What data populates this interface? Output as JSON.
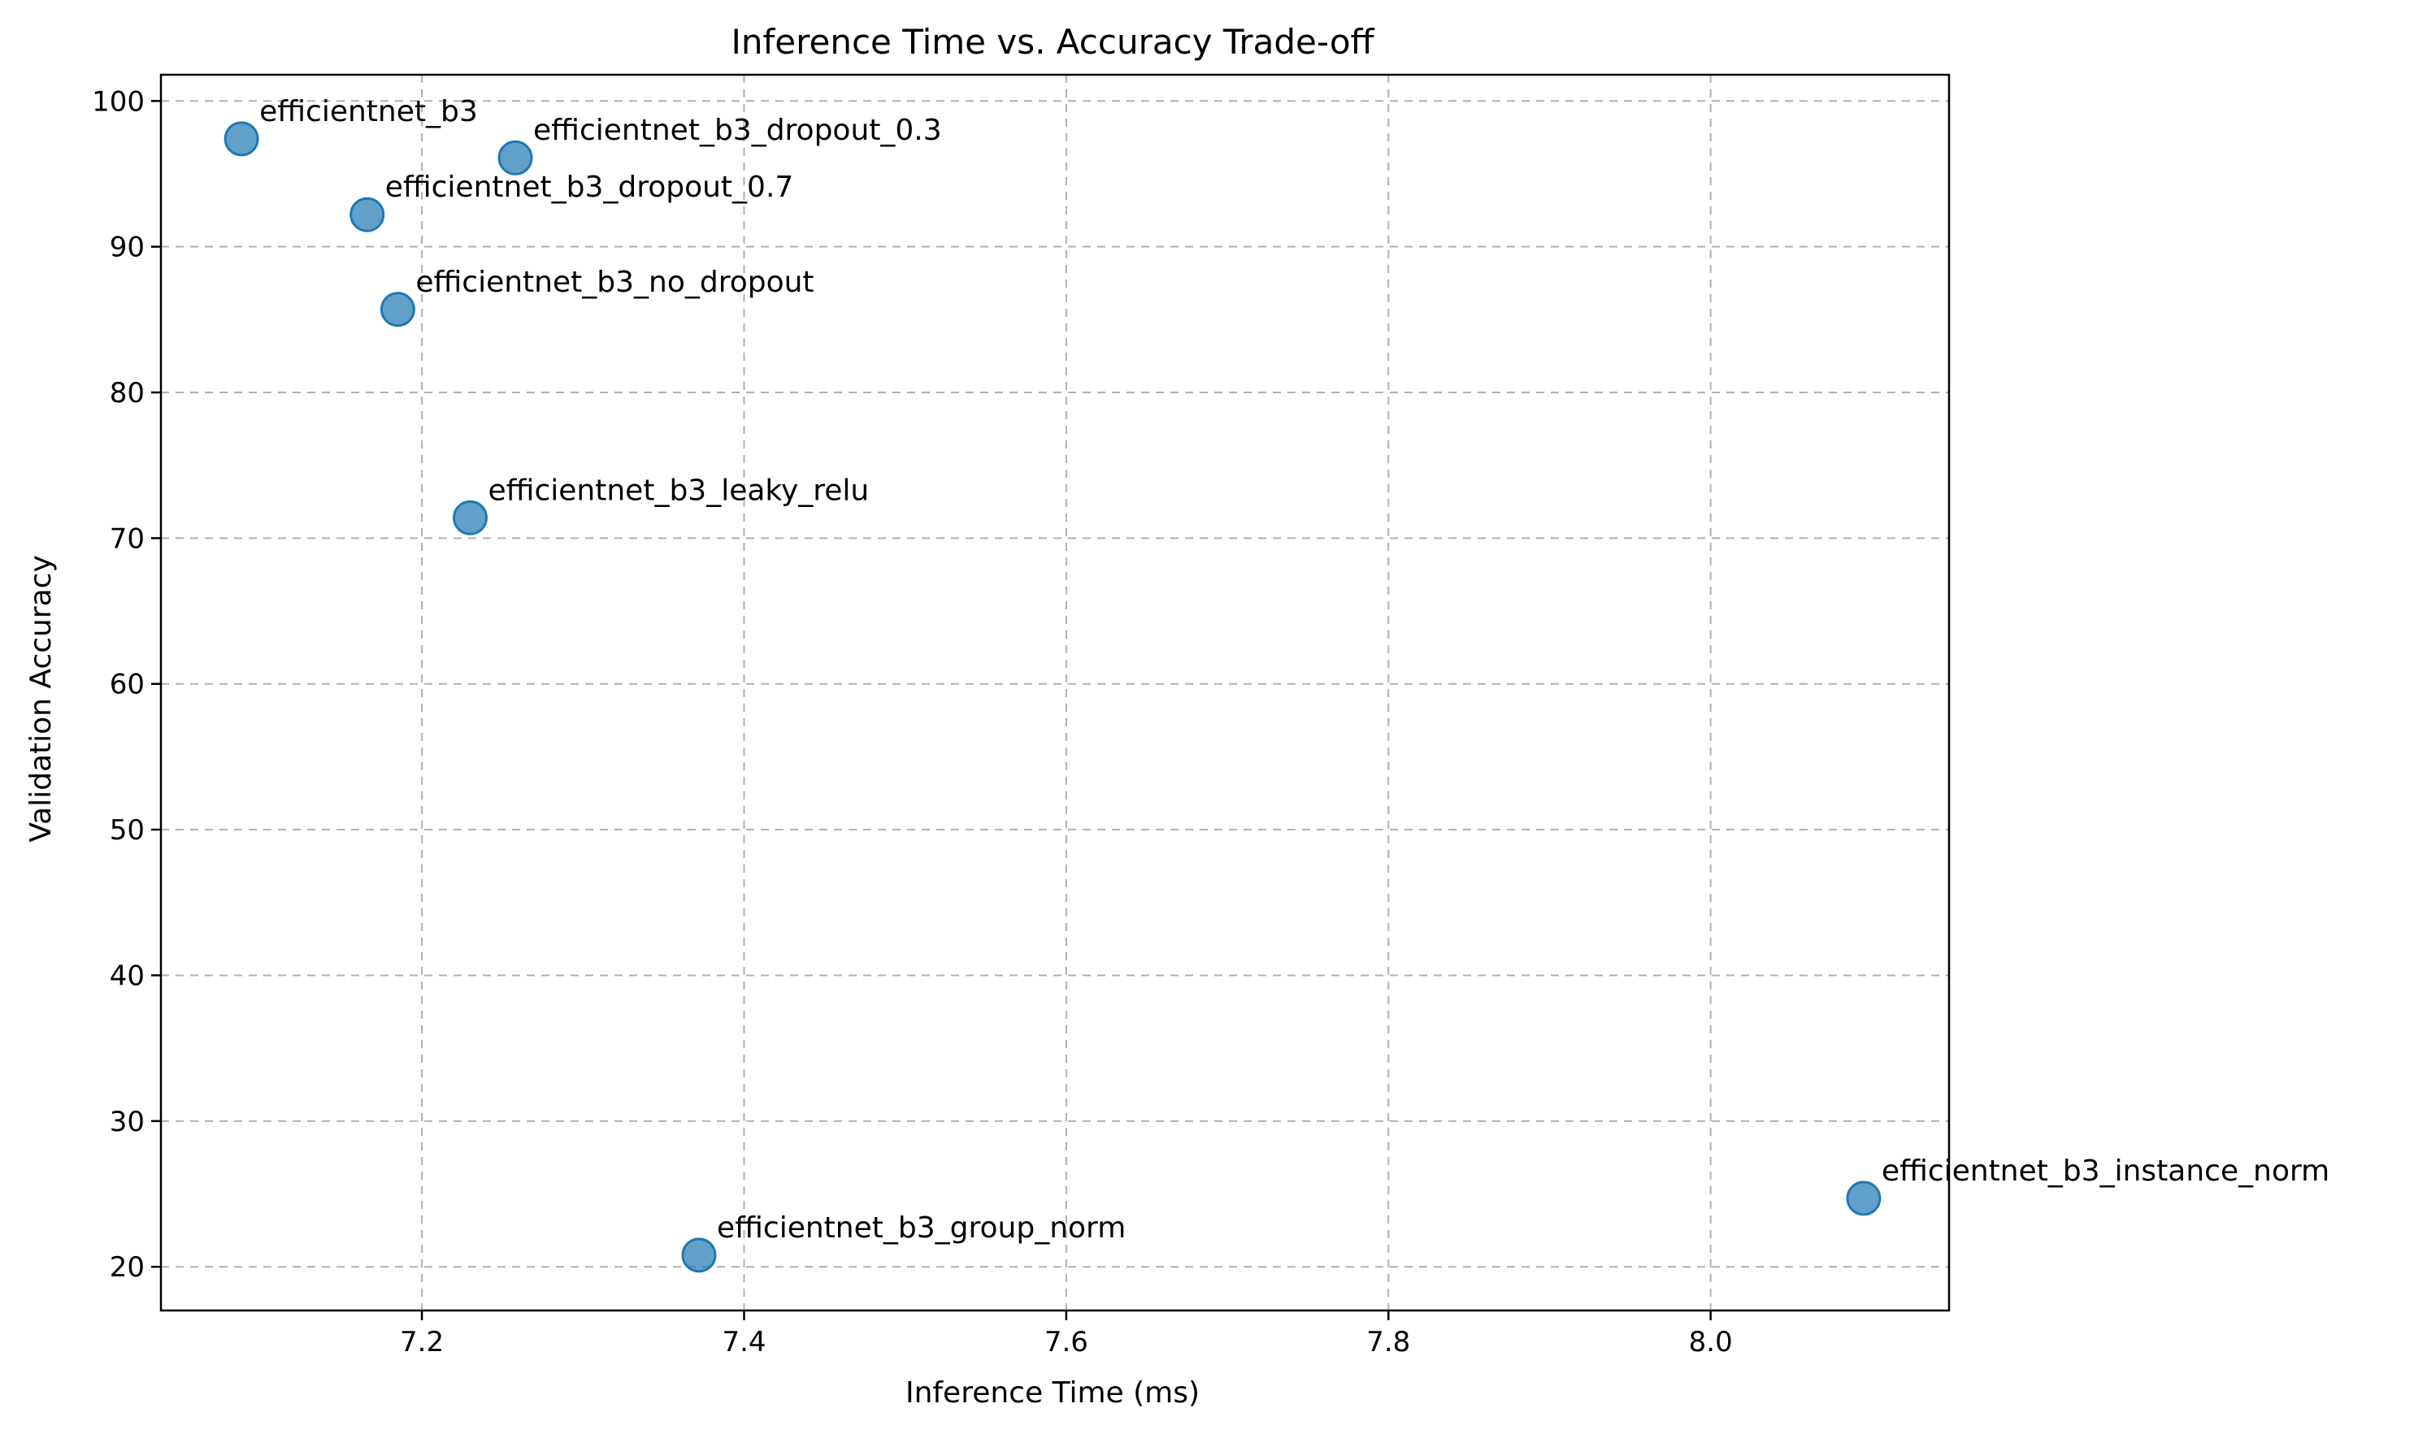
{
  "chart_data": {
    "type": "scatter",
    "title": "Inference Time vs. Accuracy Trade-off",
    "xlabel": "Inference Time (ms)",
    "ylabel": "Validation Accuracy",
    "xlim": [
      7.038,
      8.148
    ],
    "ylim": [
      17.0,
      101.8
    ],
    "xticks": [
      7.2,
      7.4,
      7.6,
      7.8,
      8.0
    ],
    "xtick_labels": [
      "7.2",
      "7.4",
      "7.6",
      "7.8",
      "8.0"
    ],
    "yticks": [
      20,
      30,
      40,
      50,
      60,
      70,
      80,
      90,
      100
    ],
    "ytick_labels": [
      "20",
      "30",
      "40",
      "50",
      "60",
      "70",
      "80",
      "90",
      "100"
    ],
    "grid": true,
    "marker_color": "#1f77b4",
    "points": [
      {
        "label": "efficientnet_b3",
        "x": 7.088,
        "y": 97.4
      },
      {
        "label": "efficientnet_b3_dropout_0.3",
        "x": 7.258,
        "y": 96.1
      },
      {
        "label": "efficientnet_b3_dropout_0.7",
        "x": 7.166,
        "y": 92.2
      },
      {
        "label": "efficientnet_b3_no_dropout",
        "x": 7.185,
        "y": 85.7
      },
      {
        "label": "efficientnet_b3_leaky_relu",
        "x": 7.23,
        "y": 71.4
      },
      {
        "label": "efficientnet_b3_group_norm",
        "x": 7.372,
        "y": 20.8
      },
      {
        "label": "efficientnet_b3_instance_norm",
        "x": 8.095,
        "y": 24.7
      }
    ]
  }
}
